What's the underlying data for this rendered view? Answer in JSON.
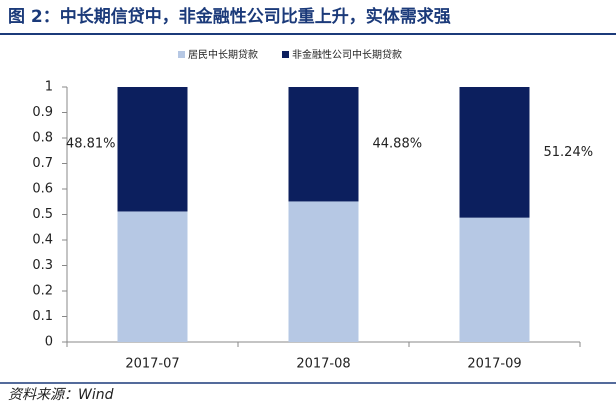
{
  "chart_data": {
    "type": "stacked_bar",
    "title": "图 2：中长期信贷中，非金融性公司比重上升，实体需求强",
    "source": "资料来源：Wind",
    "categories": [
      "2017-07",
      "2017-08",
      "2017-09"
    ],
    "series": [
      {
        "name": "居民中长期贷款",
        "color": "#b6c8e4",
        "values": [
          0.5119,
          0.5512,
          0.4876
        ]
      },
      {
        "name": "非金融性公司中长期贷款",
        "color": "#0c1f5e",
        "values": [
          0.4881,
          0.4488,
          0.5124
        ],
        "value_labels": [
          "48.81%",
          "44.88%",
          "51.24%"
        ]
      }
    ],
    "ylim": [
      0,
      1
    ],
    "yticks": [
      0,
      0.1,
      0.2,
      0.3,
      0.4,
      0.5,
      0.6,
      0.7,
      0.8,
      0.9,
      1
    ],
    "legend": "top"
  }
}
